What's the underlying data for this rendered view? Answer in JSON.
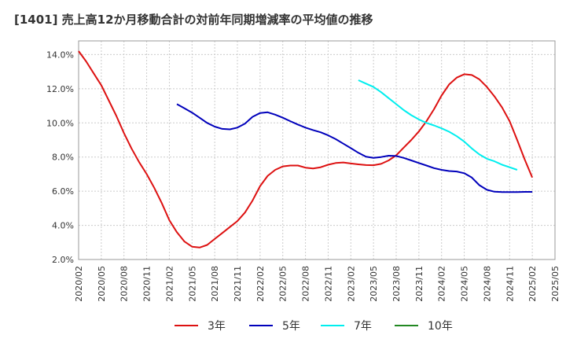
{
  "chart_data": {
    "type": "line",
    "title": "[1401]  売上高12か月移動合計の対前年同期増減率の平均値の推移",
    "xlabel": "",
    "ylabel": "",
    "ylim": [
      2.0,
      14.8
    ],
    "yticks": [
      "2.0%",
      "4.0%",
      "6.0%",
      "8.0%",
      "10.0%",
      "12.0%",
      "14.0%"
    ],
    "ytick_values": [
      2,
      4,
      6,
      8,
      10,
      12,
      14
    ],
    "xticks": [
      "2020/02",
      "2020/05",
      "2020/08",
      "2020/11",
      "2021/02",
      "2021/05",
      "2021/08",
      "2021/11",
      "2022/02",
      "2022/05",
      "2022/08",
      "2022/11",
      "2023/02",
      "2023/05",
      "2023/08",
      "2023/11",
      "2024/02",
      "2024/05",
      "2024/08",
      "2024/11",
      "2025/02",
      "2025/05"
    ],
    "grid": true,
    "legend_position": "bottom",
    "series": [
      {
        "name": "3年",
        "color": "#dd1111",
        "start": "2020/02",
        "values": [
          14.2,
          13.6,
          12.9,
          12.2,
          11.3,
          10.4,
          9.4,
          8.5,
          7.7,
          7.0,
          6.2,
          5.3,
          4.3,
          3.6,
          3.05,
          2.75,
          2.7,
          2.85,
          3.2,
          3.55,
          3.9,
          4.25,
          4.75,
          5.45,
          6.3,
          6.9,
          7.25,
          7.45,
          7.5,
          7.5,
          7.38,
          7.33,
          7.4,
          7.55,
          7.65,
          7.68,
          7.62,
          7.57,
          7.53,
          7.52,
          7.6,
          7.8,
          8.1,
          8.55,
          9.0,
          9.5,
          10.1,
          10.8,
          11.6,
          12.25,
          12.65,
          12.85,
          12.8,
          12.55,
          12.1,
          11.55,
          10.9,
          10.1,
          9.0,
          7.85,
          6.8
        ]
      },
      {
        "name": "5年",
        "color": "#0000bb",
        "start": "2021/03",
        "values": [
          11.1,
          10.85,
          10.6,
          10.3,
          10.0,
          9.78,
          9.65,
          9.62,
          9.72,
          9.95,
          10.35,
          10.58,
          10.62,
          10.48,
          10.3,
          10.1,
          9.9,
          9.72,
          9.58,
          9.45,
          9.27,
          9.05,
          8.78,
          8.52,
          8.25,
          8.02,
          7.95,
          8.0,
          8.08,
          8.06,
          7.95,
          7.8,
          7.65,
          7.5,
          7.35,
          7.25,
          7.18,
          7.15,
          7.05,
          6.8,
          6.35,
          6.08,
          5.97,
          5.95,
          5.95,
          5.95,
          5.96,
          5.96
        ]
      },
      {
        "name": "7年",
        "color": "#00eeee",
        "start": "2023/03",
        "values": [
          12.5,
          12.3,
          12.1,
          11.8,
          11.45,
          11.1,
          10.75,
          10.45,
          10.2,
          10.0,
          9.85,
          9.68,
          9.48,
          9.22,
          8.9,
          8.5,
          8.15,
          7.9,
          7.75,
          7.55,
          7.4,
          7.25
        ]
      },
      {
        "name": "10年",
        "color": "#228822",
        "start": "",
        "values": []
      }
    ]
  }
}
